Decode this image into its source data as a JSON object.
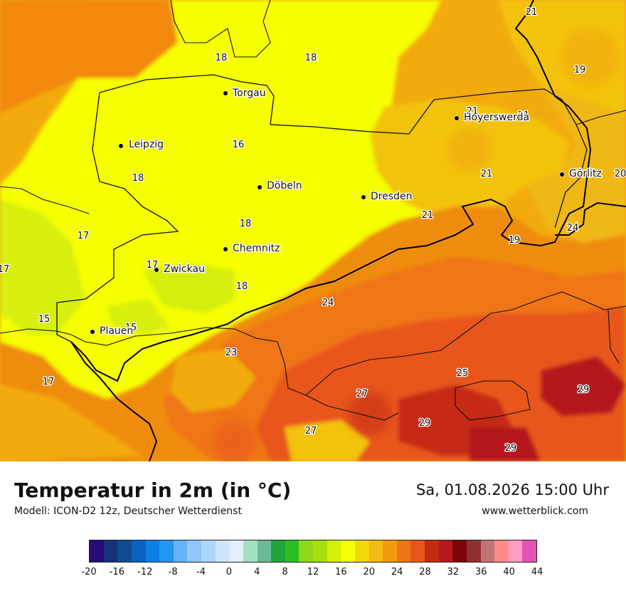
{
  "title": "Temperatur in 2m (in °C)",
  "model": "Modell: ICON-D2 12z, Deutscher Wetterdienst",
  "datetime": "Sa, 01.08.2026 15:00 Uhr",
  "website": "www.wetterblick.com",
  "cities": [
    {
      "name": "Torgau"
    },
    {
      "name": "Hoyerswerda"
    },
    {
      "name": "Leipzig"
    },
    {
      "name": "Görlitz"
    },
    {
      "name": "Döbeln"
    },
    {
      "name": "Dresden"
    },
    {
      "name": "Chemnitz"
    },
    {
      "name": "Zwickau"
    },
    {
      "name": "Plauen"
    }
  ],
  "temperature_labels": [
    "21",
    "18",
    "18",
    "19",
    "21",
    "21",
    "16",
    "18",
    "21",
    "20",
    "18",
    "21",
    "24",
    "17",
    "19",
    "17",
    "17",
    "18",
    "15",
    "24",
    "15",
    "23",
    "17",
    "25",
    "27",
    "29",
    "29",
    "27",
    "29"
  ],
  "legend": {
    "colors": [
      "#2a0a78",
      "#11337a",
      "#114a91",
      "#0a63c0",
      "#0b80e5",
      "#2196f3",
      "#66b3f5",
      "#8ec7f8",
      "#add6fa",
      "#cde6fb",
      "#e1efff",
      "#a3e0c2",
      "#6bb892",
      "#22a33c",
      "#2bbf24",
      "#8fd81a",
      "#a6df0f",
      "#d4ef0a",
      "#f5ff05",
      "#f2d80a",
      "#f0bc12",
      "#f39a0f",
      "#ef7512",
      "#e8561b",
      "#c62a12",
      "#b5181c",
      "#7d0505",
      "#91312f",
      "#c07575",
      "#ff8a8a",
      "#ff9ec5",
      "#e353b6"
    ],
    "ticks": [
      "-20",
      "-16",
      "-12",
      "-8",
      "-4",
      "0",
      "4",
      "8",
      "12",
      "16",
      "20",
      "24",
      "28",
      "32",
      "36",
      "40",
      "44"
    ],
    "min": -20,
    "max": 44
  }
}
